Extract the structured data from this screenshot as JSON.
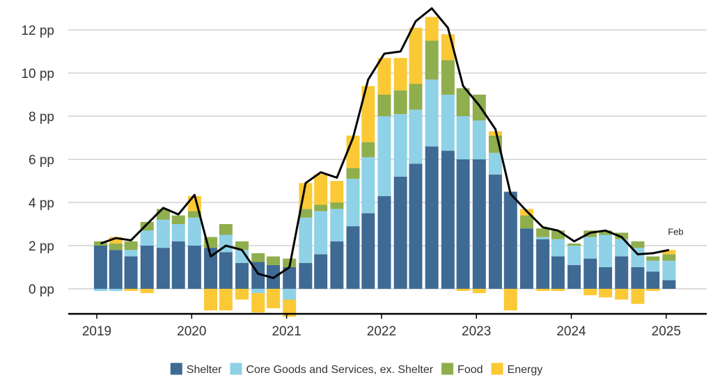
{
  "chart_data": {
    "type": "bar",
    "stacked": true,
    "y_unit_suffix": " pp",
    "ylim": [
      -1.2,
      13.2
    ],
    "yticks": [
      0,
      2,
      4,
      6,
      8,
      10,
      12
    ],
    "ytick_labels": [
      "0 pp",
      "2 pp",
      "4 pp",
      "6 pp",
      "8 pp",
      "10 pp",
      "12 pp"
    ],
    "xlim": [
      2019.0,
      2025.25
    ],
    "xticks": [
      2019,
      2020,
      2021,
      2022,
      2023,
      2024,
      2025
    ],
    "xtick_labels": [
      "2019",
      "2020",
      "2021",
      "2022",
      "2023",
      "2024",
      "2025"
    ],
    "grid": true,
    "legend_position": "bottom-center",
    "colors": {
      "shelter": "#3f6a94",
      "core": "#8fd1e6",
      "food": "#8fae4d",
      "energy": "#fbc936",
      "line": "#000000"
    },
    "legend": [
      {
        "key": "shelter",
        "label": "Shelter"
      },
      {
        "key": "core",
        "label": "Core Goods and Services, ex. Shelter"
      },
      {
        "key": "food",
        "label": "Food"
      },
      {
        "key": "energy",
        "label": "Energy"
      }
    ],
    "annotation": {
      "text": "Feb",
      "x": 2025.1,
      "y": 2.5
    },
    "x": [
      2019.04,
      2019.2,
      2019.36,
      2019.53,
      2019.7,
      2019.86,
      2020.03,
      2020.2,
      2020.36,
      2020.53,
      2020.7,
      2020.86,
      2021.03,
      2021.2,
      2021.36,
      2021.53,
      2021.7,
      2021.86,
      2022.03,
      2022.2,
      2022.36,
      2022.53,
      2022.7,
      2022.86,
      2023.03,
      2023.2,
      2023.36,
      2023.53,
      2023.7,
      2023.86,
      2024.03,
      2024.2,
      2024.36,
      2024.53,
      2024.7,
      2024.86,
      2025.03
    ],
    "series": [
      {
        "key": "shelter",
        "name": "Shelter",
        "values": [
          2.0,
          1.8,
          1.5,
          2.0,
          1.9,
          2.2,
          2.0,
          1.9,
          1.7,
          1.2,
          1.25,
          1.1,
          1.0,
          1.2,
          1.6,
          2.2,
          2.9,
          3.5,
          4.3,
          5.2,
          5.8,
          6.6,
          6.4,
          6.0,
          6.0,
          5.3,
          4.5,
          2.8,
          2.3,
          1.5,
          1.1,
          1.4,
          1.0,
          1.5,
          1.0,
          0.8,
          0.4
        ]
      },
      {
        "key": "core",
        "name": "Core Goods and Services, ex. Shelter",
        "values": [
          -0.1,
          -0.1,
          0.3,
          0.7,
          1.3,
          0.8,
          1.3,
          0.0,
          0.8,
          0.6,
          -0.2,
          0.0,
          -0.5,
          2.1,
          2.0,
          1.5,
          2.2,
          2.6,
          3.7,
          2.9,
          2.5,
          3.1,
          2.6,
          2.0,
          1.8,
          1.0,
          0.0,
          0.0,
          0.1,
          0.8,
          0.9,
          1.0,
          1.5,
          0.8,
          0.9,
          0.5,
          0.9
        ]
      },
      {
        "key": "food",
        "name": "Food",
        "values": [
          0.2,
          0.3,
          0.4,
          0.4,
          0.5,
          0.4,
          0.3,
          0.5,
          0.5,
          0.4,
          0.4,
          0.4,
          0.4,
          0.4,
          0.3,
          0.3,
          0.5,
          0.7,
          1.0,
          1.1,
          1.2,
          1.8,
          1.6,
          1.3,
          1.2,
          0.8,
          0.0,
          0.6,
          0.4,
          0.4,
          0.1,
          0.3,
          0.2,
          0.3,
          0.3,
          0.2,
          0.3
        ]
      },
      {
        "key": "energy",
        "name": "Energy",
        "values": [
          0.0,
          0.3,
          -0.1,
          -0.2,
          0.0,
          0.0,
          0.7,
          -1.0,
          -1.0,
          -0.5,
          -0.9,
          -0.9,
          -0.8,
          1.2,
          1.4,
          1.0,
          1.5,
          2.6,
          1.7,
          1.5,
          2.6,
          1.1,
          1.2,
          -0.1,
          -0.2,
          0.2,
          -1.0,
          0.3,
          -0.1,
          -0.1,
          0.0,
          -0.3,
          -0.4,
          -0.5,
          -0.7,
          -0.1,
          0.2
        ]
      },
      {
        "key": "line",
        "name": "",
        "type": "line",
        "values": [
          2.1,
          2.35,
          2.25,
          3.0,
          3.75,
          3.45,
          4.35,
          1.5,
          2.0,
          1.8,
          0.7,
          0.5,
          1.0,
          4.9,
          5.4,
          5.15,
          7.0,
          9.7,
          10.9,
          11.0,
          12.4,
          13.0,
          12.1,
          9.4,
          8.5,
          7.4,
          4.4,
          3.6,
          2.85,
          2.7,
          2.2,
          2.6,
          2.7,
          2.4,
          1.6,
          1.65,
          1.8
        ]
      }
    ]
  }
}
